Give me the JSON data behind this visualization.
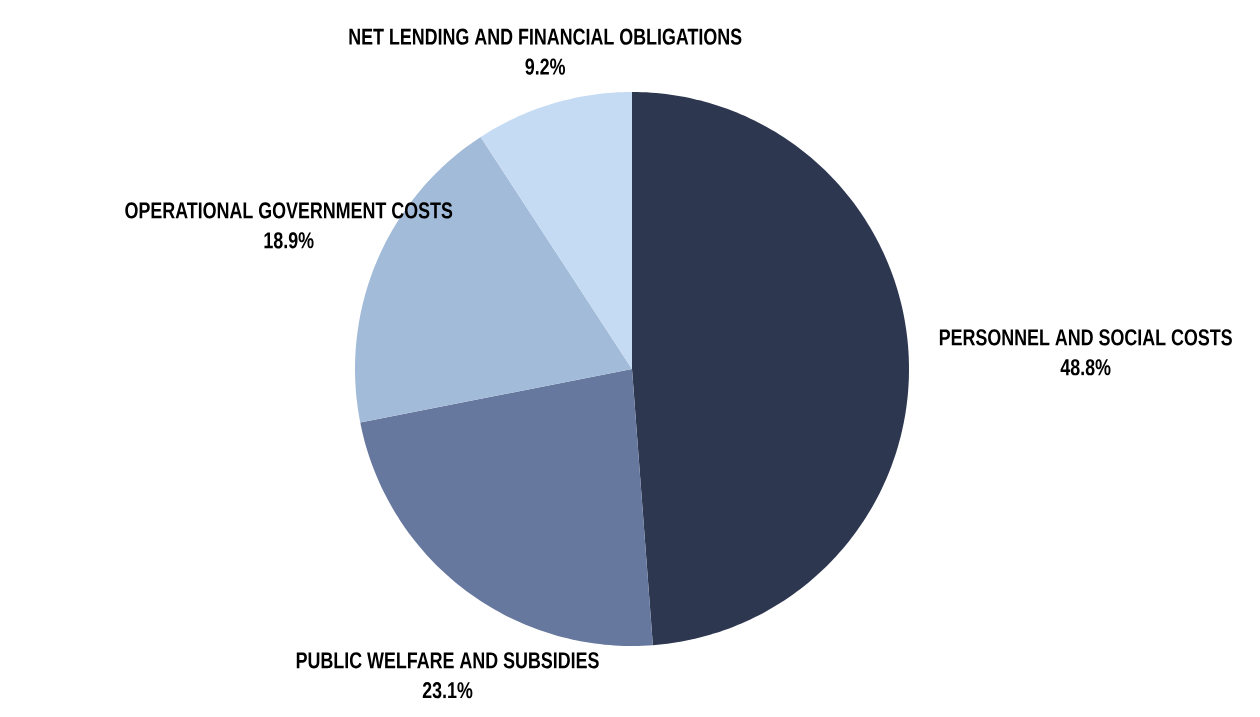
{
  "chart_data": {
    "type": "pie",
    "categories": [
      "PERSONNEL AND SOCIAL COSTS",
      "PUBLIC WELFARE AND SUBSIDIES",
      "OPERATIONAL GOVERNMENT COSTS",
      "NET LENDING AND FINANCIAL OBLIGATIONS"
    ],
    "values": [
      48.8,
      23.1,
      18.9,
      9.2
    ],
    "value_labels": [
      "48.8%",
      "23.1%",
      "18.9%",
      "9.2%"
    ],
    "colors": [
      "#2e3750",
      "#67789f",
      "#a2bbd9",
      "#c5dbf3"
    ]
  }
}
